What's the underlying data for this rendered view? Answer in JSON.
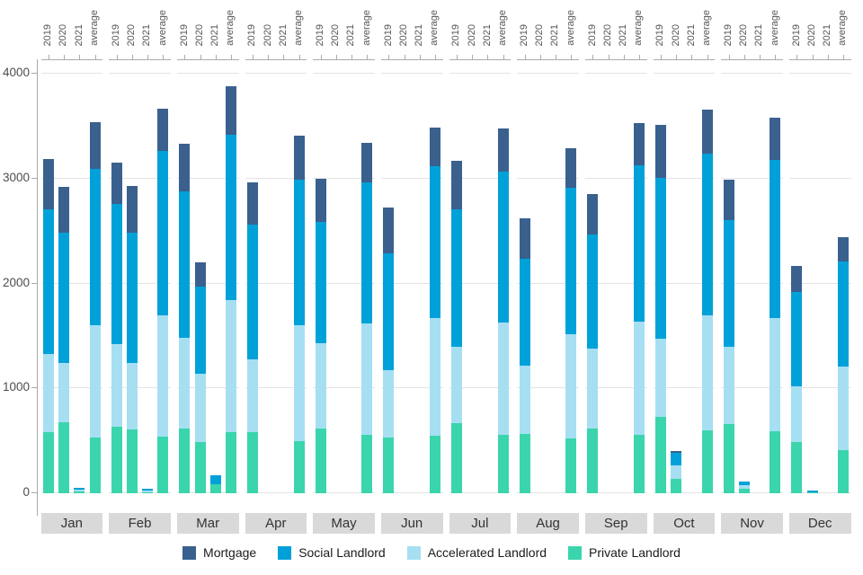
{
  "y_axis": {
    "ticks": [
      "4000",
      "3000",
      "2000",
      "1000",
      "0"
    ]
  },
  "top_axis": {
    "group_labels": [
      "2019",
      "2020",
      "2021",
      "average"
    ]
  },
  "legend": {
    "items": [
      {
        "label": "Mortgage",
        "color": "#3A608E"
      },
      {
        "label": "Social Landlord",
        "color": "#00A1D9"
      },
      {
        "label": "Accelerated Landlord",
        "color": "#A6DFF2"
      },
      {
        "label": "Private Landlord",
        "color": "#3AD5AC"
      }
    ]
  },
  "chart_data": {
    "type": "bar",
    "stacked": true,
    "orientation": "vertical",
    "title": "",
    "x_axis_position": "top",
    "legend_position": "bottom",
    "grid": true,
    "ylim": [
      0,
      4000
    ],
    "yticks": [
      0,
      1000,
      2000,
      3000,
      4000
    ],
    "facet_labels_position": "bottom",
    "group_labels": [
      "2019",
      "2020",
      "2021",
      "average"
    ],
    "series_order_bottom_to_top": [
      "private",
      "accelerated",
      "social",
      "mortgage"
    ],
    "series_names": {
      "private": "Private Landlord",
      "accelerated": "Accelerated Landlord",
      "social": "Social Landlord",
      "mortgage": "Mortgage"
    },
    "series_colors": {
      "private": "#3AD5AC",
      "accelerated": "#A6DFF2",
      "social": "#00A1D9",
      "mortgage": "#3A608E"
    },
    "months": [
      {
        "month": "Jan",
        "bars": [
          {
            "group": "2019",
            "private": 580,
            "accelerated": 750,
            "social": 1380,
            "mortgage": 480
          },
          {
            "group": "2020",
            "private": 680,
            "accelerated": 560,
            "social": 1240,
            "mortgage": 440
          },
          {
            "group": "2021",
            "private": 15,
            "accelerated": 20,
            "social": 20,
            "mortgage": 0
          },
          {
            "group": "average",
            "private": 530,
            "accelerated": 1070,
            "social": 1490,
            "mortgage": 450
          }
        ]
      },
      {
        "month": "Feb",
        "bars": [
          {
            "group": "2019",
            "private": 630,
            "accelerated": 790,
            "social": 1340,
            "mortgage": 390
          },
          {
            "group": "2020",
            "private": 610,
            "accelerated": 630,
            "social": 1240,
            "mortgage": 450
          },
          {
            "group": "2021",
            "private": 10,
            "accelerated": 15,
            "social": 20,
            "mortgage": 0
          },
          {
            "group": "average",
            "private": 540,
            "accelerated": 1160,
            "social": 1560,
            "mortgage": 410
          }
        ]
      },
      {
        "month": "Mar",
        "bars": [
          {
            "group": "2019",
            "private": 620,
            "accelerated": 860,
            "social": 1400,
            "mortgage": 450
          },
          {
            "group": "2020",
            "private": 490,
            "accelerated": 650,
            "social": 830,
            "mortgage": 230
          },
          {
            "group": "2021",
            "private": 85,
            "accelerated": 0,
            "social": 85,
            "mortgage": 0
          },
          {
            "group": "average",
            "private": 580,
            "accelerated": 1260,
            "social": 1580,
            "mortgage": 460
          }
        ]
      },
      {
        "month": "Apr",
        "bars": [
          {
            "group": "2019",
            "private": 585,
            "accelerated": 695,
            "social": 1280,
            "mortgage": 400
          },
          {
            "group": "2020",
            "private": 0,
            "accelerated": 0,
            "social": 0,
            "mortgage": 0
          },
          {
            "group": "2021",
            "private": 0,
            "accelerated": 0,
            "social": 0,
            "mortgage": 0
          },
          {
            "group": "average",
            "private": 500,
            "accelerated": 1100,
            "social": 1390,
            "mortgage": 420
          }
        ]
      },
      {
        "month": "May",
        "bars": [
          {
            "group": "2019",
            "private": 620,
            "accelerated": 810,
            "social": 1160,
            "mortgage": 410
          },
          {
            "group": "2020",
            "private": 0,
            "accelerated": 0,
            "social": 0,
            "mortgage": 0
          },
          {
            "group": "2021",
            "private": 0,
            "accelerated": 0,
            "social": 0,
            "mortgage": 0
          },
          {
            "group": "average",
            "private": 560,
            "accelerated": 1060,
            "social": 1340,
            "mortgage": 380
          }
        ]
      },
      {
        "month": "Jun",
        "bars": [
          {
            "group": "2019",
            "private": 530,
            "accelerated": 640,
            "social": 1120,
            "mortgage": 430
          },
          {
            "group": "2020",
            "private": 0,
            "accelerated": 0,
            "social": 0,
            "mortgage": 0
          },
          {
            "group": "2021",
            "private": 0,
            "accelerated": 0,
            "social": 0,
            "mortgage": 0
          },
          {
            "group": "average",
            "private": 550,
            "accelerated": 1120,
            "social": 1450,
            "mortgage": 370
          }
        ]
      },
      {
        "month": "Jul",
        "bars": [
          {
            "group": "2019",
            "private": 670,
            "accelerated": 730,
            "social": 1310,
            "mortgage": 460
          },
          {
            "group": "2020",
            "private": 0,
            "accelerated": 0,
            "social": 0,
            "mortgage": 0
          },
          {
            "group": "2021",
            "private": 0,
            "accelerated": 0,
            "social": 0,
            "mortgage": 0
          },
          {
            "group": "average",
            "private": 560,
            "accelerated": 1070,
            "social": 1440,
            "mortgage": 410
          }
        ]
      },
      {
        "month": "Aug",
        "bars": [
          {
            "group": "2019",
            "private": 565,
            "accelerated": 655,
            "social": 1020,
            "mortgage": 380
          },
          {
            "group": "2020",
            "private": 0,
            "accelerated": 0,
            "social": 0,
            "mortgage": 0
          },
          {
            "group": "2021",
            "private": 0,
            "accelerated": 0,
            "social": 0,
            "mortgage": 0
          },
          {
            "group": "average",
            "private": 520,
            "accelerated": 1000,
            "social": 1390,
            "mortgage": 380
          }
        ]
      },
      {
        "month": "Sep",
        "bars": [
          {
            "group": "2019",
            "private": 615,
            "accelerated": 765,
            "social": 1090,
            "mortgage": 380
          },
          {
            "group": "2020",
            "private": 0,
            "accelerated": 0,
            "social": 0,
            "mortgage": 0
          },
          {
            "group": "2021",
            "private": 0,
            "accelerated": 0,
            "social": 0,
            "mortgage": 0
          },
          {
            "group": "average",
            "private": 560,
            "accelerated": 1080,
            "social": 1490,
            "mortgage": 400
          }
        ]
      },
      {
        "month": "Oct",
        "bars": [
          {
            "group": "2019",
            "private": 730,
            "accelerated": 740,
            "social": 1540,
            "mortgage": 500
          },
          {
            "group": "2020",
            "private": 140,
            "accelerated": 125,
            "social": 120,
            "mortgage": 20
          },
          {
            "group": "2021",
            "private": 0,
            "accelerated": 0,
            "social": 0,
            "mortgage": 0
          },
          {
            "group": "average",
            "private": 600,
            "accelerated": 1100,
            "social": 1540,
            "mortgage": 415
          }
        ]
      },
      {
        "month": "Nov",
        "bars": [
          {
            "group": "2019",
            "private": 660,
            "accelerated": 740,
            "social": 1200,
            "mortgage": 390
          },
          {
            "group": "2020",
            "private": 40,
            "accelerated": 35,
            "social": 40,
            "mortgage": 0
          },
          {
            "group": "2021",
            "private": 0,
            "accelerated": 0,
            "social": 0,
            "mortgage": 0
          },
          {
            "group": "average",
            "private": 595,
            "accelerated": 1075,
            "social": 1510,
            "mortgage": 400
          }
        ]
      },
      {
        "month": "Dec",
        "bars": [
          {
            "group": "2019",
            "private": 485,
            "accelerated": 535,
            "social": 895,
            "mortgage": 255
          },
          {
            "group": "2020",
            "private": 5,
            "accelerated": 5,
            "social": 15,
            "mortgage": 0
          },
          {
            "group": "2021",
            "private": 0,
            "accelerated": 0,
            "social": 0,
            "mortgage": 0
          },
          {
            "group": "average",
            "private": 415,
            "accelerated": 795,
            "social": 1000,
            "mortgage": 230
          }
        ]
      }
    ]
  }
}
